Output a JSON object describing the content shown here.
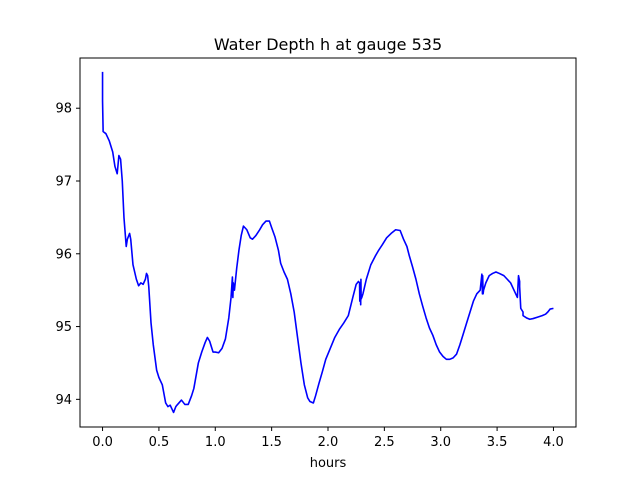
{
  "chart_data": {
    "type": "line",
    "title": "Water Depth h at gauge 535",
    "xlabel": "hours",
    "ylabel": "",
    "xlim": [
      -0.2,
      4.2
    ],
    "ylim": [
      93.62,
      98.69
    ],
    "xticks": [
      0.0,
      0.5,
      1.0,
      1.5,
      2.0,
      2.5,
      3.0,
      3.5,
      4.0
    ],
    "xtick_labels": [
      "0.0",
      "0.5",
      "1.0",
      "1.5",
      "2.0",
      "2.5",
      "3.0",
      "3.5",
      "4.0"
    ],
    "yticks": [
      94,
      95,
      96,
      97,
      98
    ],
    "ytick_labels": [
      "94",
      "95",
      "96",
      "97",
      "98"
    ],
    "grid": false,
    "series": [
      {
        "color": "#0000ff",
        "x": [
          0.0,
          0.0,
          0.005,
          0.005,
          0.03,
          0.06,
          0.09,
          0.11,
          0.13,
          0.145,
          0.16,
          0.175,
          0.19,
          0.21,
          0.22,
          0.24,
          0.25,
          0.27,
          0.3,
          0.32,
          0.34,
          0.36,
          0.38,
          0.39,
          0.4,
          0.41,
          0.43,
          0.45,
          0.48,
          0.5,
          0.53,
          0.56,
          0.58,
          0.6,
          0.63,
          0.65,
          0.66,
          0.7,
          0.73,
          0.76,
          0.79,
          0.81,
          0.85,
          0.88,
          0.91,
          0.93,
          0.95,
          0.98,
          1.0,
          1.03,
          1.06,
          1.09,
          1.12,
          1.14,
          1.152,
          1.156,
          1.16,
          1.17,
          1.19,
          1.21,
          1.23,
          1.25,
          1.28,
          1.31,
          1.33,
          1.36,
          1.39,
          1.42,
          1.45,
          1.48,
          1.5,
          1.53,
          1.56,
          1.58,
          1.61,
          1.64,
          1.67,
          1.7,
          1.73,
          1.76,
          1.79,
          1.82,
          1.84,
          1.87,
          1.89,
          1.92,
          1.95,
          1.98,
          2.02,
          2.06,
          2.1,
          2.14,
          2.18,
          2.22,
          2.25,
          2.27,
          2.28,
          2.282,
          2.286,
          2.29,
          2.292,
          2.294,
          2.3,
          2.31,
          2.34,
          2.38,
          2.42,
          2.45,
          2.48,
          2.52,
          2.56,
          2.6,
          2.64,
          2.67,
          2.7,
          2.72,
          2.75,
          2.78,
          2.81,
          2.84,
          2.87,
          2.9,
          2.93,
          2.96,
          2.99,
          3.02,
          3.05,
          3.08,
          3.11,
          3.14,
          3.17,
          3.2,
          3.23,
          3.26,
          3.29,
          3.32,
          3.35,
          3.365,
          3.37,
          3.372,
          3.376,
          3.38,
          3.4,
          3.43,
          3.46,
          3.49,
          3.52,
          3.56,
          3.59,
          3.62,
          3.65,
          3.68,
          3.69,
          3.7,
          3.7,
          3.71,
          3.73,
          3.73,
          3.76,
          3.79,
          3.82,
          3.86,
          3.9,
          3.93,
          3.95,
          3.97,
          4.0
        ],
        "y": [
          98.5,
          98.1,
          97.7,
          97.68,
          97.65,
          97.55,
          97.4,
          97.2,
          97.1,
          97.35,
          97.3,
          97.0,
          96.5,
          96.1,
          96.2,
          96.28,
          96.2,
          95.85,
          95.65,
          95.56,
          95.6,
          95.58,
          95.65,
          95.73,
          95.7,
          95.55,
          95.05,
          94.75,
          94.4,
          94.3,
          94.2,
          93.95,
          93.9,
          93.92,
          93.82,
          93.9,
          93.92,
          93.99,
          93.93,
          93.93,
          94.05,
          94.15,
          94.5,
          94.65,
          94.78,
          94.85,
          94.8,
          94.65,
          94.65,
          94.64,
          94.7,
          94.83,
          95.12,
          95.4,
          95.68,
          95.4,
          95.6,
          95.5,
          95.8,
          96.05,
          96.25,
          96.38,
          96.33,
          96.22,
          96.2,
          96.25,
          96.32,
          96.4,
          96.45,
          96.45,
          96.36,
          96.23,
          96.05,
          95.87,
          95.75,
          95.65,
          95.45,
          95.2,
          94.85,
          94.5,
          94.2,
          94.02,
          93.97,
          93.95,
          94.05,
          94.22,
          94.38,
          94.55,
          94.7,
          94.85,
          94.96,
          95.05,
          95.15,
          95.4,
          95.58,
          95.62,
          95.6,
          95.35,
          95.6,
          95.3,
          95.65,
          95.38,
          95.4,
          95.45,
          95.65,
          95.85,
          95.97,
          96.05,
          96.12,
          96.22,
          96.28,
          96.33,
          96.32,
          96.2,
          96.1,
          95.98,
          95.82,
          95.65,
          95.45,
          95.28,
          95.12,
          94.98,
          94.88,
          94.75,
          94.65,
          94.59,
          94.55,
          94.55,
          94.57,
          94.62,
          94.75,
          94.9,
          95.05,
          95.2,
          95.35,
          95.45,
          95.5,
          95.72,
          95.45,
          95.7,
          95.45,
          95.5,
          95.6,
          95.7,
          95.73,
          95.75,
          95.73,
          95.7,
          95.65,
          95.6,
          95.5,
          95.4,
          95.7,
          95.62,
          95.55,
          95.25,
          95.2,
          95.15,
          95.12,
          95.1,
          95.11,
          95.13,
          95.15,
          95.17,
          95.2,
          95.24,
          95.25
        ]
      }
    ]
  }
}
